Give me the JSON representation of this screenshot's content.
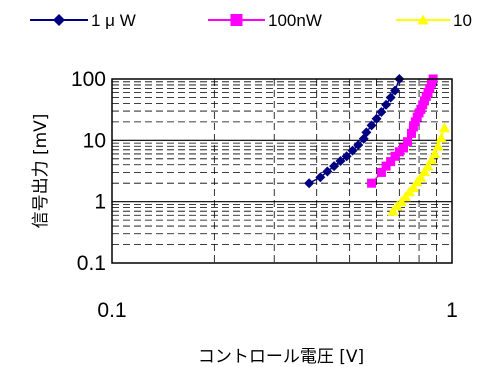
{
  "chart_data": {
    "type": "scatter",
    "title": "",
    "xlabel": "コントロール電圧 [V]",
    "ylabel": "信号出力 [mV]",
    "xscale": "log",
    "yscale": "log",
    "xlim": [
      0.1,
      1
    ],
    "ylim": [
      0.1,
      100
    ],
    "x_tick_labels": [
      "0.1",
      "1"
    ],
    "y_tick_labels": [
      "0.1",
      "1",
      "10",
      "100"
    ],
    "grid": true,
    "legend_position": "top",
    "series": [
      {
        "name": "1 μ W",
        "color": "#000080",
        "marker": "diamond",
        "x": [
          0.38,
          0.41,
          0.43,
          0.45,
          0.47,
          0.49,
          0.51,
          0.53,
          0.55,
          0.56,
          0.58,
          0.6,
          0.62,
          0.64,
          0.66,
          0.68,
          0.7
        ],
        "y": [
          2.0,
          2.5,
          3.1,
          3.8,
          4.6,
          5.5,
          6.8,
          8.4,
          10.6,
          13.5,
          17.5,
          22.5,
          29,
          38,
          50,
          65,
          100
        ]
      },
      {
        "name": "100nW",
        "color": "#FF00FF",
        "marker": "square",
        "x": [
          0.58,
          0.62,
          0.64,
          0.66,
          0.68,
          0.7,
          0.72,
          0.74,
          0.76,
          0.77,
          0.78,
          0.79,
          0.8,
          0.81,
          0.82,
          0.83,
          0.84,
          0.85,
          0.86,
          0.87,
          0.88
        ],
        "y": [
          2.0,
          3.0,
          3.8,
          4.5,
          5.5,
          6.5,
          7.5,
          9.5,
          13,
          16.5,
          20,
          24,
          28,
          32,
          38,
          44,
          52,
          60,
          70,
          85,
          100
        ]
      },
      {
        "name": "10",
        "color": "#FFFF00",
        "marker": "triangle",
        "x": [
          0.67,
          0.69,
          0.71,
          0.73,
          0.75,
          0.77,
          0.79,
          0.81,
          0.83,
          0.85,
          0.87,
          0.89,
          0.91,
          0.93,
          0.95
        ],
        "y": [
          0.7,
          0.85,
          1.0,
          1.2,
          1.45,
          1.7,
          2.1,
          2.5,
          3.1,
          3.8,
          4.8,
          6.1,
          8.0,
          11,
          16
        ]
      }
    ]
  }
}
